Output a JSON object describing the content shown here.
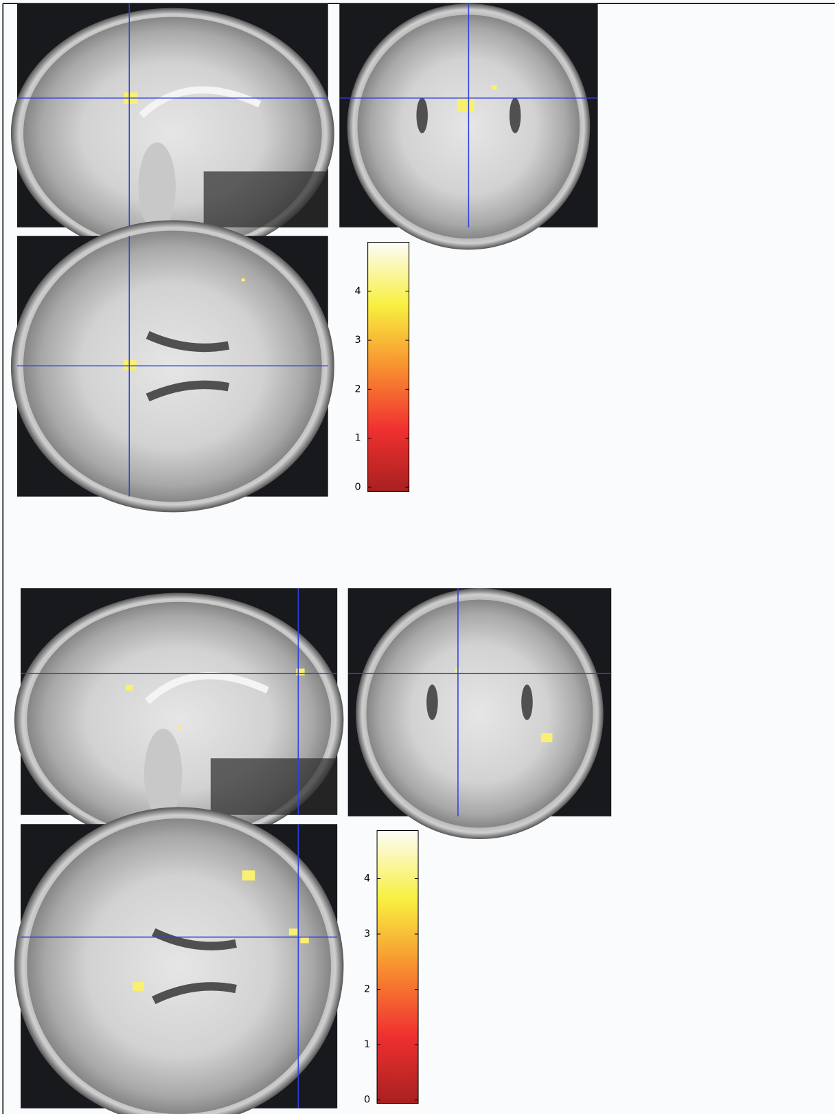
{
  "panels": [
    {
      "colorbar": {
        "range": [
          -0.09,
          5.0
        ],
        "ticks": [
          0,
          1,
          2,
          3,
          4
        ]
      }
    },
    {
      "colorbar": {
        "range": [
          -0.06,
          4.87
        ],
        "ticks": [
          0,
          1,
          2,
          3,
          4
        ]
      }
    }
  ]
}
